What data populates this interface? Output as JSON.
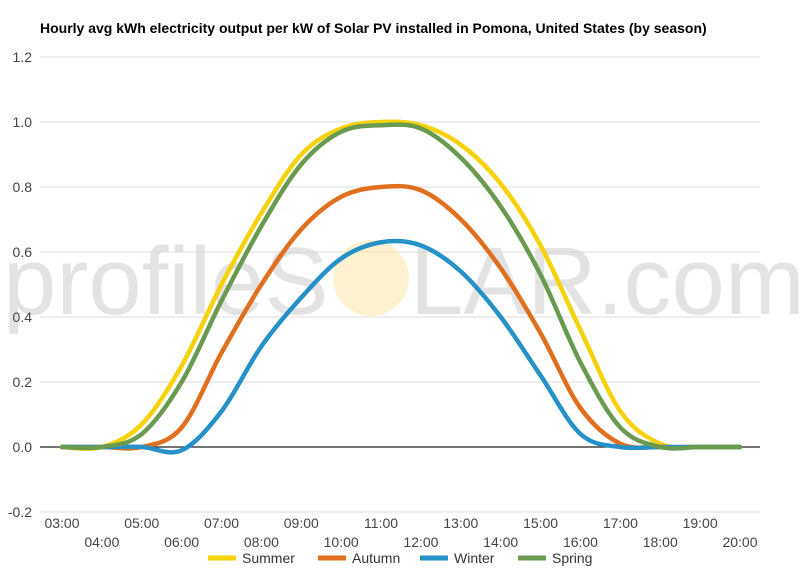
{
  "chart_data": {
    "type": "line",
    "title": "Hourly avg kWh electricity output per kW of Solar PV installed in Pomona, United States (by season)",
    "xlabel": "",
    "ylabel": "",
    "x": [
      "03:00",
      "04:00",
      "05:00",
      "06:00",
      "07:00",
      "08:00",
      "09:00",
      "10:00",
      "11:00",
      "12:00",
      "13:00",
      "14:00",
      "15:00",
      "16:00",
      "17:00",
      "18:00",
      "19:00",
      "20:00"
    ],
    "ylim": [
      -0.2,
      1.2
    ],
    "yticks": [
      "-0.2",
      "0.0",
      "0.2",
      "0.4",
      "0.6",
      "0.8",
      "1.0",
      "1.2"
    ],
    "grid": true,
    "legend_position": "bottom",
    "series": [
      {
        "name": "Summer",
        "color": "#f5d20a",
        "values": [
          0.0,
          0.0,
          0.07,
          0.25,
          0.5,
          0.72,
          0.9,
          0.98,
          1.0,
          0.99,
          0.93,
          0.81,
          0.62,
          0.36,
          0.11,
          0.01,
          0.0,
          0.0
        ]
      },
      {
        "name": "Autumn",
        "color": "#e06f1f",
        "values": [
          0.0,
          0.0,
          0.0,
          0.06,
          0.29,
          0.5,
          0.67,
          0.77,
          0.8,
          0.79,
          0.7,
          0.55,
          0.35,
          0.12,
          0.01,
          0.0,
          0.0,
          0.0
        ]
      },
      {
        "name": "Winter",
        "color": "#2591c7",
        "values": [
          0.0,
          0.0,
          0.0,
          -0.01,
          0.11,
          0.31,
          0.46,
          0.58,
          0.63,
          0.62,
          0.54,
          0.4,
          0.22,
          0.04,
          0.0,
          0.0,
          0.0,
          0.0
        ]
      },
      {
        "name": "Spring",
        "color": "#6a9950",
        "values": [
          0.0,
          0.0,
          0.04,
          0.2,
          0.45,
          0.68,
          0.87,
          0.97,
          0.99,
          0.98,
          0.89,
          0.74,
          0.53,
          0.26,
          0.06,
          0.0,
          0.0,
          0.0
        ]
      }
    ]
  },
  "watermark": {
    "text_left": "profileS",
    "text_right": "LAR.com"
  }
}
